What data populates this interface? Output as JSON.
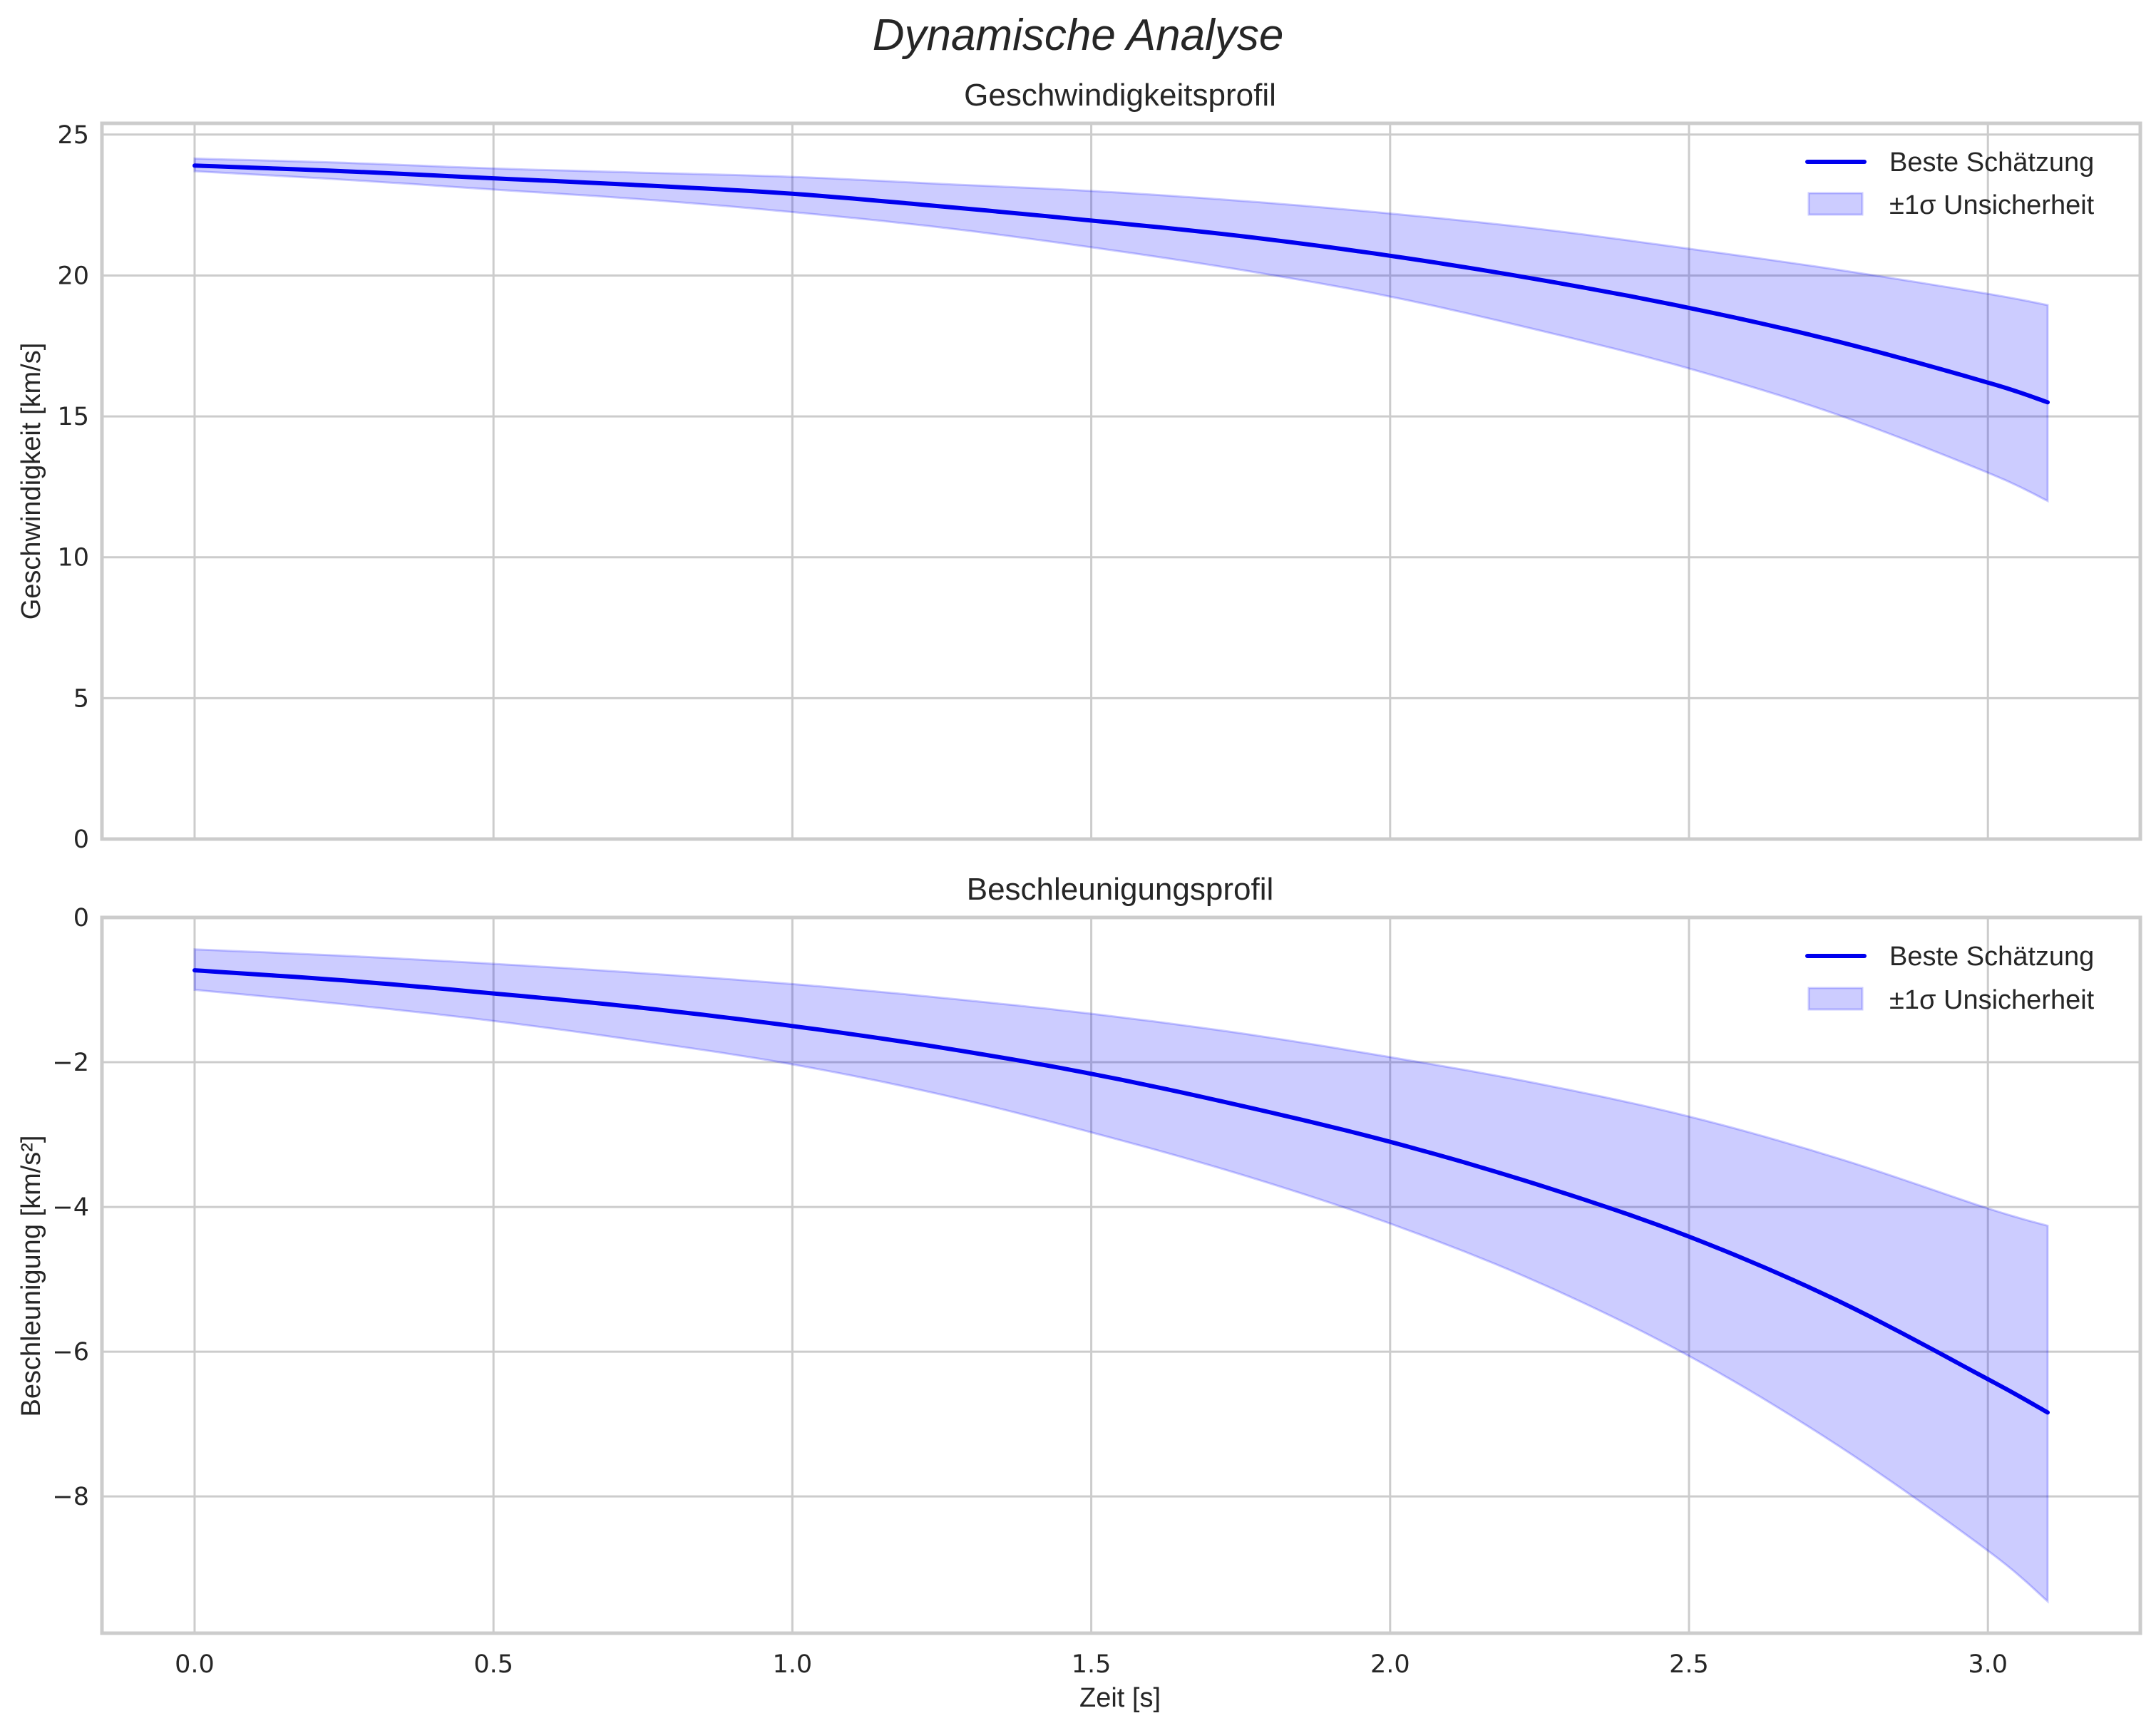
{
  "figure": {
    "suptitle": "Dynamische Analyse",
    "colors": {
      "line": "#0000ee",
      "band_fill": "#0000ff",
      "band_alpha": 0.2,
      "grid": "#cccccc",
      "spine": "#cccccc",
      "text": "#262626"
    }
  },
  "chart_data": [
    {
      "type": "line",
      "title": "Geschwindigkeitsprofil",
      "xlabel": "",
      "ylabel": "Geschwindigkeit [km/s]",
      "xlim": [
        -0.155,
        3.255
      ],
      "ylim": [
        0,
        25.4
      ],
      "xticks": [
        0.0,
        0.5,
        1.0,
        1.5,
        2.0,
        2.5,
        3.0
      ],
      "xtick_labels": [
        "",
        "",
        "",
        "",
        "",
        "",
        ""
      ],
      "yticks": [
        0,
        5,
        10,
        15,
        20,
        25
      ],
      "ytick_labels": [
        "0",
        "5",
        "10",
        "15",
        "20",
        "25"
      ],
      "grid": true,
      "legend_position": "upper right",
      "legend": [
        "Beste Schätzung",
        "±1σ Unsicherheit"
      ],
      "x": [
        0.0,
        0.25,
        0.5,
        0.75,
        1.0,
        1.25,
        1.5,
        1.75,
        2.0,
        2.25,
        2.5,
        2.75,
        3.0,
        3.1
      ],
      "series": [
        {
          "name": "Beste Schätzung",
          "kind": "line",
          "values": [
            23.9,
            23.7,
            23.45,
            23.2,
            22.9,
            22.45,
            21.95,
            21.4,
            20.7,
            19.85,
            18.85,
            17.65,
            16.2,
            15.5
          ]
        },
        {
          "name": "±1σ Unsicherheit (obere Grenze)",
          "kind": "band_upper",
          "values": [
            24.15,
            24.0,
            23.8,
            23.65,
            23.5,
            23.25,
            23.0,
            22.65,
            22.2,
            21.65,
            20.95,
            20.2,
            19.35,
            18.95
          ]
        },
        {
          "name": "±1σ Unsicherheit (untere Grenze)",
          "kind": "band_lower",
          "values": [
            23.7,
            23.4,
            23.05,
            22.7,
            22.25,
            21.7,
            21.0,
            20.2,
            19.25,
            18.05,
            16.7,
            15.05,
            13.0,
            12.0
          ]
        }
      ]
    },
    {
      "type": "line",
      "title": "Beschleunigungsprofil",
      "xlabel": "Zeit [s]",
      "ylabel": "Beschleunigung [km/s²]",
      "xlim": [
        -0.155,
        3.255
      ],
      "ylim": [
        -9.89,
        0
      ],
      "xticks": [
        0.0,
        0.5,
        1.0,
        1.5,
        2.0,
        2.5,
        3.0
      ],
      "xtick_labels": [
        "0.0",
        "0.5",
        "1.0",
        "1.5",
        "2.0",
        "2.5",
        "3.0"
      ],
      "yticks": [
        0,
        -2,
        -4,
        -6,
        -8
      ],
      "ytick_labels": [
        "0",
        "−2",
        "−4",
        "−6",
        "−8"
      ],
      "grid": true,
      "legend_position": "upper right",
      "legend": [
        "Beste Schätzung",
        "±1σ Unsicherheit"
      ],
      "x": [
        0.0,
        0.25,
        0.5,
        0.75,
        1.0,
        1.25,
        1.5,
        1.75,
        2.0,
        2.25,
        2.5,
        2.75,
        3.0,
        3.1
      ],
      "series": [
        {
          "name": "Beste Schätzung",
          "kind": "line",
          "values": [
            -0.73,
            -0.87,
            -1.05,
            -1.25,
            -1.5,
            -1.8,
            -2.16,
            -2.6,
            -3.1,
            -3.7,
            -4.41,
            -5.3,
            -6.38,
            -6.84
          ]
        },
        {
          "name": "±1σ Unsicherheit (obere Grenze)",
          "kind": "band_upper",
          "values": [
            -0.44,
            -0.53,
            -0.64,
            -0.77,
            -0.92,
            -1.11,
            -1.33,
            -1.6,
            -1.93,
            -2.3,
            -2.75,
            -3.33,
            -4.02,
            -4.26
          ]
        },
        {
          "name": "±1σ Unsicherheit (untere Grenze)",
          "kind": "band_lower",
          "values": [
            -1.0,
            -1.2,
            -1.43,
            -1.71,
            -2.03,
            -2.45,
            -2.97,
            -3.55,
            -4.23,
            -5.05,
            -6.06,
            -7.3,
            -8.75,
            -9.45
          ]
        }
      ]
    }
  ]
}
